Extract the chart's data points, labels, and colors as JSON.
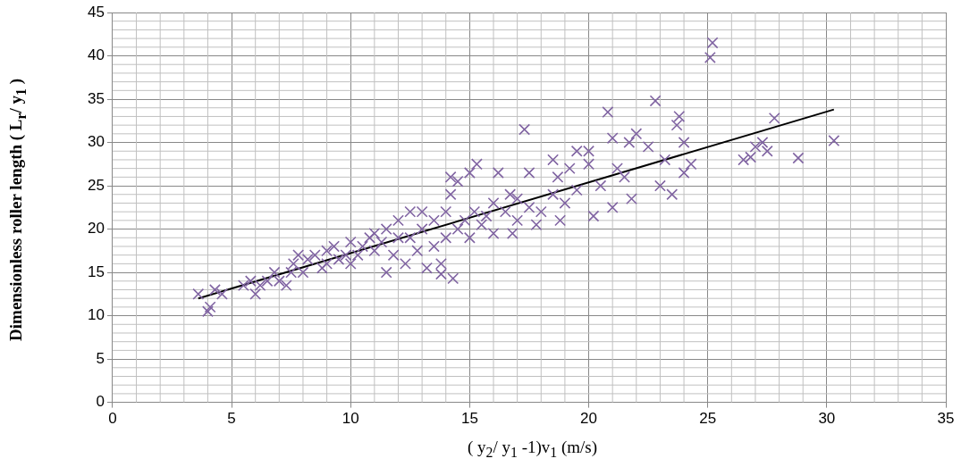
{
  "chart_data": {
    "type": "scatter",
    "xlabel": "( y$_{2}$/ y$_{1}$ -1)v$_{1}$ (m/s)",
    "ylabel": "Dimensionless roller length ( L$_{r}$/ y$_{1}$ )",
    "xlim": [
      0,
      35
    ],
    "xticks": [
      0,
      5,
      10,
      15,
      20,
      25,
      30,
      35
    ],
    "ylim": [
      0,
      45
    ],
    "yticks": [
      0,
      5,
      10,
      15,
      20,
      25,
      30,
      35,
      40,
      45
    ],
    "grid": true,
    "legend": false,
    "marker": "cross",
    "series": [
      {
        "color": "#8064a2",
        "x": [
          3.6,
          4,
          4.1,
          4.3,
          4.6,
          5.5,
          5.8,
          6,
          6.2,
          6.5,
          6.8,
          7,
          7.3,
          7.5,
          7.6,
          7.8,
          8,
          8.2,
          8.5,
          8.8,
          9,
          9,
          9.3,
          9.5,
          9.8,
          10,
          10,
          10.3,
          10.5,
          10.8,
          11,
          11,
          11.3,
          11.5,
          11.5,
          11.8,
          12,
          12,
          12.3,
          12.5,
          12.5,
          12.8,
          13,
          13,
          13.2,
          13.5,
          13.5,
          13.8,
          13.8,
          14,
          14,
          14.2,
          14.3,
          14.2,
          14.5,
          14.5,
          14.8,
          15,
          15,
          15.2,
          15.3,
          15.5,
          15.7,
          16,
          16,
          16.2,
          16.5,
          16.7,
          16.8,
          17,
          17,
          17.3,
          17.5,
          17.5,
          17.8,
          18,
          18.5,
          18.5,
          18.7,
          18.8,
          19,
          19.2,
          19.5,
          19.5,
          20,
          20,
          20.2,
          20.5,
          20.8,
          21,
          21,
          21.2,
          21.5,
          21.7,
          21.8,
          22,
          22.5,
          22.8,
          23,
          23.2,
          23.5,
          23.7,
          23.8,
          24,
          24,
          24.3,
          25.2,
          25.1,
          26.5,
          26.8,
          27,
          27.3,
          27.5,
          27.8,
          28.8,
          30.3
        ],
        "values": [
          12.5,
          10.5,
          11,
          13,
          12.5,
          13.5,
          14,
          12.5,
          13.5,
          14,
          15,
          14,
          13.5,
          15,
          16,
          17,
          15,
          16.5,
          17,
          15.5,
          16,
          17.5,
          18,
          16.5,
          17,
          18.5,
          16,
          17,
          18,
          19,
          19.5,
          17.5,
          18.5,
          20,
          15,
          17,
          19,
          21,
          16,
          22,
          19,
          17.5,
          20,
          22,
          15.5,
          21,
          18,
          16,
          14.8,
          22,
          19,
          26,
          14.3,
          24,
          20,
          25.5,
          21,
          19,
          26.5,
          22,
          27.5,
          20.5,
          21.5,
          19.5,
          23,
          26.5,
          22,
          24,
          19.5,
          23.5,
          21,
          31.5,
          26.5,
          22.5,
          20.5,
          22,
          28,
          24,
          26,
          21,
          23,
          27,
          29,
          24.5,
          29,
          27.5,
          21.5,
          25,
          33.5,
          30.5,
          22.5,
          27,
          26,
          30,
          23.5,
          31,
          29.5,
          34.8,
          25,
          28,
          24,
          32,
          33,
          30,
          26.5,
          27.5,
          41.5,
          39.8,
          28,
          28.3,
          29.5,
          30,
          29,
          32.8,
          28.2,
          30.2
        ]
      },
      {
        "type": "line",
        "color": "#000000",
        "marker": "none",
        "x": [
          3.6,
          30.3
        ],
        "values": [
          12,
          33.8
        ]
      }
    ]
  }
}
